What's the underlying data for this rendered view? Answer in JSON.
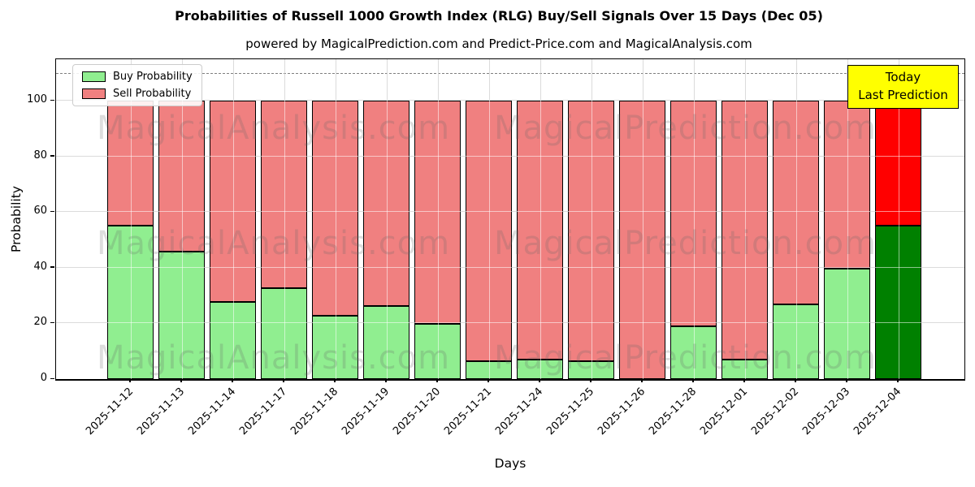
{
  "title": "Probabilities of Russell 1000 Growth Index (RLG) Buy/Sell Signals Over 15 Days (Dec 05)",
  "subtitle": "powered by MagicalPrediction.com and Predict-Price.com and MagicalAnalysis.com",
  "legend": {
    "buy_label": "Buy Probability",
    "sell_label": "Sell Probability"
  },
  "annotation": {
    "line1": "Today",
    "line2": "Last Prediction"
  },
  "watermarks": {
    "left_text": "MagicalAnalysis.com",
    "right_text": "MagicalPrediction.com"
  },
  "colors": {
    "buy": "#90EE90",
    "sell": "#F08080",
    "today_buy": "#008000",
    "today_sell": "#FF0000",
    "bar_edge": "#000000",
    "grid": "#b0b0b0",
    "dashed_line": "#7f7f7f",
    "annotation_bg": "#ffff00"
  },
  "chart_data": {
    "type": "bar",
    "stacked": true,
    "title": "Probabilities of Russell 1000 Growth Index (RLG) Buy/Sell Signals Over 15 Days (Dec 05)",
    "subtitle": "powered by MagicalPrediction.com and Predict-Price.com and MagicalAnalysis.com",
    "xlabel": "Days",
    "ylabel": "Probability",
    "categories": [
      "2025-11-12",
      "2025-11-13",
      "2025-11-14",
      "2025-11-17",
      "2025-11-18",
      "2025-11-19",
      "2025-11-20",
      "2025-11-21",
      "2025-11-24",
      "2025-11-25",
      "2025-11-26",
      "2025-11-28",
      "2025-12-01",
      "2025-12-02",
      "2025-12-03",
      "2025-12-04"
    ],
    "series": [
      {
        "name": "Buy Probability",
        "values": [
          55.5,
          46,
          28,
          33,
          23,
          26.5,
          20,
          6.5,
          7,
          6.5,
          0,
          19,
          7,
          27,
          40,
          55.5
        ]
      },
      {
        "name": "Sell Probability",
        "values": [
          44.5,
          54,
          72,
          67,
          77,
          73.5,
          80,
          93.5,
          93,
          93.5,
          100,
          81,
          93,
          73,
          60,
          44.5
        ]
      }
    ],
    "bar_total": 100,
    "yticks": [
      0,
      20,
      40,
      60,
      80,
      100
    ],
    "ylim": [
      0,
      115
    ],
    "threshold_line_y": 110,
    "today_index": 15,
    "legend_position": "upper left",
    "grid": true
  }
}
